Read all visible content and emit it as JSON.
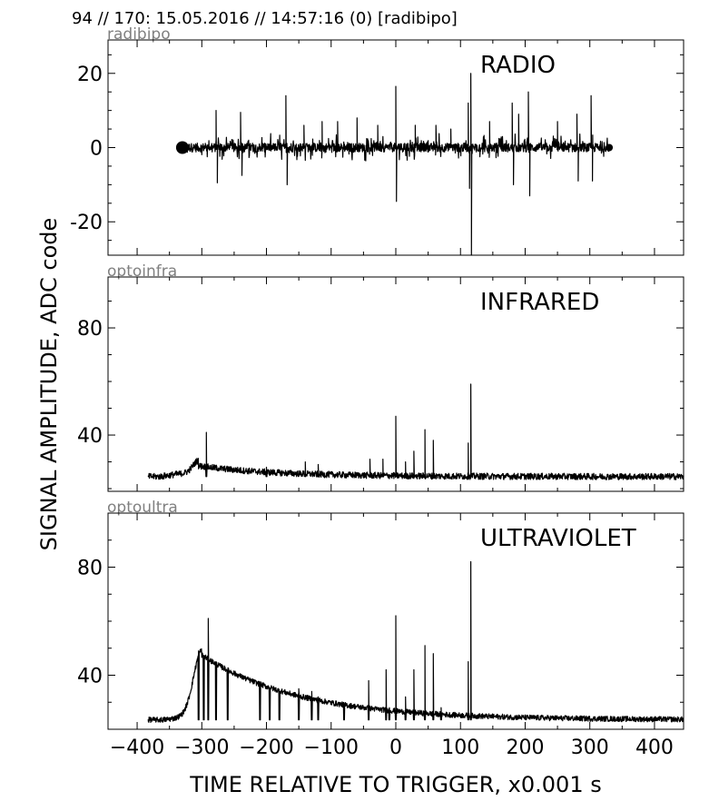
{
  "header": "94 // 170:   15.05.2016 // 14:57:16 (0)  [radibipo]",
  "xlabel": "TIME RELATIVE TO TRIGGER,   x0.001 s",
  "ylabel": "SIGNAL AMPLITUDE,  ADC code",
  "chart_data": [
    {
      "type": "line",
      "id_label": "radibipo",
      "title": "RADIO",
      "xlim": [
        -445,
        445
      ],
      "ylim": [
        -29,
        29
      ],
      "xticks": [
        -400,
        -300,
        -200,
        -100,
        0,
        100,
        200,
        300,
        400
      ],
      "yticks": [
        -20,
        0,
        20
      ],
      "ytick_labels": [
        "-20",
        "0",
        "20"
      ],
      "baseline": 0,
      "noise": 1.2,
      "x_range": [
        -330,
        330
      ],
      "peaks": [
        [
          -330,
          0
        ],
        [
          -313,
          0
        ],
        [
          -278,
          10
        ],
        [
          -276,
          -9.5
        ],
        [
          -240,
          9.5
        ],
        [
          -238,
          -7.5
        ],
        [
          -170,
          14
        ],
        [
          -168,
          -10
        ],
        [
          -142,
          6
        ],
        [
          -114,
          7
        ],
        [
          -90,
          7
        ],
        [
          -60,
          8
        ],
        [
          -28,
          6
        ],
        [
          0,
          16.5
        ],
        [
          1,
          -14.5
        ],
        [
          30,
          6
        ],
        [
          62,
          6
        ],
        [
          85,
          5
        ],
        [
          112,
          12
        ],
        [
          114,
          -11
        ],
        [
          116,
          20
        ],
        [
          117,
          -29
        ],
        [
          145,
          7
        ],
        [
          180,
          12
        ],
        [
          182,
          -10
        ],
        [
          190,
          9
        ],
        [
          205,
          15
        ],
        [
          207,
          -13
        ],
        [
          250,
          7
        ],
        [
          280,
          9
        ],
        [
          282,
          -9
        ],
        [
          302,
          14
        ],
        [
          304,
          -9
        ],
        [
          330,
          0
        ]
      ]
    },
    {
      "type": "line",
      "id_label": "optoinfra",
      "title": "INFRARED",
      "xlim": [
        -445,
        445
      ],
      "ylim": [
        19,
        99
      ],
      "xticks": [
        -400,
        -300,
        -200,
        -100,
        0,
        100,
        200,
        300,
        400
      ],
      "yticks": [
        40,
        80
      ],
      "ytick_labels": [
        "40",
        "80"
      ],
      "baseline": 24.5,
      "noise": 1.2,
      "x_range": [
        -383,
        445
      ],
      "hump": [
        -305,
        4,
        25,
        2,
        120
      ],
      "peaks": [
        [
          -293,
          41
        ],
        [
          -200,
          28
        ],
        [
          -140,
          30
        ],
        [
          -120,
          29
        ],
        [
          -40,
          31
        ],
        [
          -20,
          31
        ],
        [
          0,
          47
        ],
        [
          15,
          30
        ],
        [
          28,
          34
        ],
        [
          45,
          42
        ],
        [
          58,
          38
        ],
        [
          112,
          37
        ],
        [
          116,
          59
        ]
      ]
    },
    {
      "type": "line",
      "id_label": "optoultra",
      "title": "ULTRAVIOLET",
      "xlim": [
        -445,
        445
      ],
      "ylim": [
        20,
        100
      ],
      "xticks": [
        -400,
        -300,
        -200,
        -100,
        0,
        100,
        200,
        300,
        400
      ],
      "yticks": [
        40,
        80
      ],
      "ytick_labels": [
        "40",
        "80"
      ],
      "baseline": 23.5,
      "noise": 1.0,
      "x_range": [
        -383,
        445
      ],
      "hump": [
        -300,
        24,
        22,
        3,
        150
      ],
      "peaks": [
        [
          -305,
          49
        ],
        [
          -297,
          47
        ],
        [
          -290,
          61
        ],
        [
          -278,
          36
        ],
        [
          -260,
          34
        ],
        [
          -210,
          36
        ],
        [
          -195,
          33
        ],
        [
          -180,
          32
        ],
        [
          -150,
          35
        ],
        [
          -130,
          34
        ],
        [
          -120,
          32
        ],
        [
          -80,
          28
        ],
        [
          -42,
          38
        ],
        [
          -15,
          42
        ],
        [
          -10,
          28
        ],
        [
          0,
          62
        ],
        [
          15,
          32
        ],
        [
          28,
          42
        ],
        [
          45,
          51
        ],
        [
          58,
          48
        ],
        [
          70,
          28
        ],
        [
          112,
          45
        ],
        [
          116,
          82
        ]
      ]
    }
  ]
}
